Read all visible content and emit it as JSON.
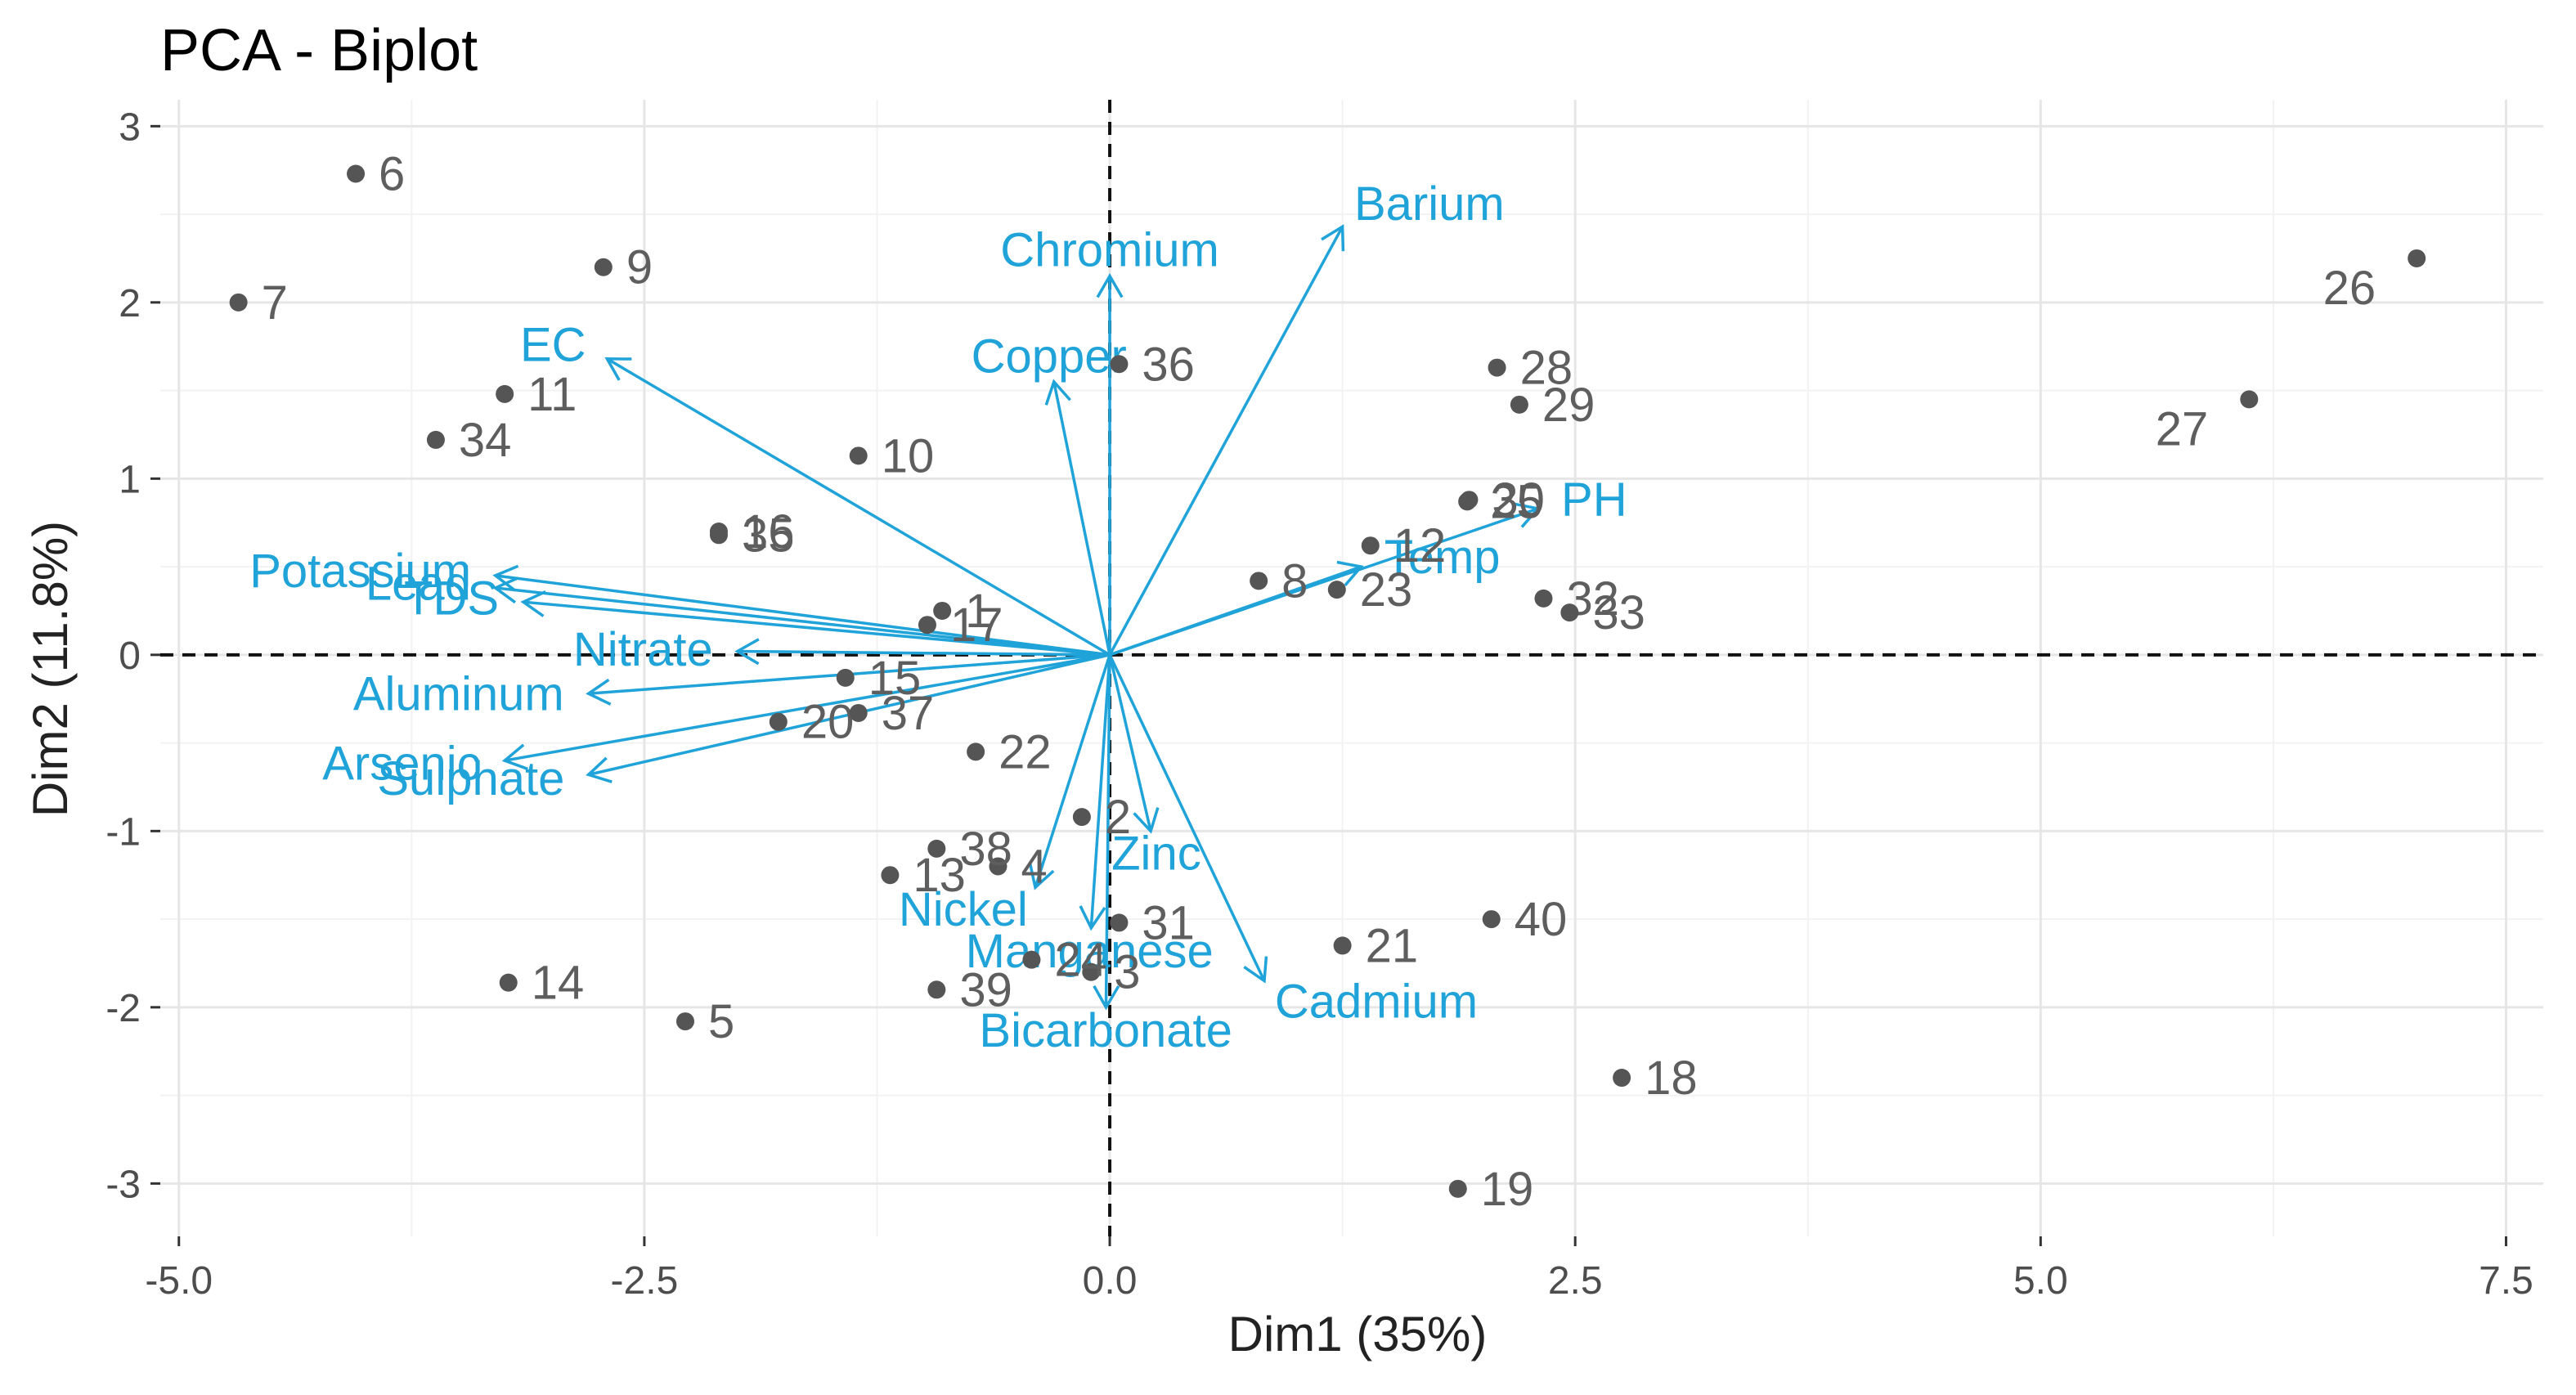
{
  "chart_data": {
    "type": "scatter",
    "title": "PCA - Biplot",
    "xlabel": "Dim1 (35%)",
    "ylabel": "Dim2 (11.8%)",
    "xlim": [
      -5.1,
      7.7
    ],
    "ylim": [
      -3.3,
      3.15
    ],
    "xticks": [
      -5.0,
      -2.5,
      0.0,
      2.5,
      5.0,
      7.5
    ],
    "xtick_labels": [
      "-5.0",
      "-2.5",
      "0.0",
      "2.5",
      "5.0",
      "7.5"
    ],
    "yticks": [
      -3,
      -2,
      -1,
      0,
      1,
      2,
      3
    ],
    "ytick_labels": [
      "-3",
      "-2",
      "-1",
      "0",
      "1",
      "2",
      "3"
    ],
    "grid": true,
    "point_color": "#555555",
    "arrow_color": "#1fa3d8",
    "points": [
      {
        "label": "1",
        "x": -0.9,
        "y": 0.25
      },
      {
        "label": "2",
        "x": -0.15,
        "y": -0.92
      },
      {
        "label": "3",
        "x": -0.1,
        "y": -1.8
      },
      {
        "label": "4",
        "x": -0.6,
        "y": -1.2
      },
      {
        "label": "5",
        "x": -2.28,
        "y": -2.08
      },
      {
        "label": "6",
        "x": -4.05,
        "y": 2.73
      },
      {
        "label": "7",
        "x": -4.68,
        "y": 2.0
      },
      {
        "label": "8",
        "x": 0.8,
        "y": 0.42
      },
      {
        "label": "9",
        "x": -2.72,
        "y": 2.2
      },
      {
        "label": "10",
        "x": -1.35,
        "y": 1.13
      },
      {
        "label": "11",
        "x": -3.25,
        "y": 1.48
      },
      {
        "label": "12",
        "x": 1.4,
        "y": 0.62
      },
      {
        "label": "13",
        "x": -1.18,
        "y": -1.25
      },
      {
        "label": "14",
        "x": -3.23,
        "y": -1.86
      },
      {
        "label": "15",
        "x": -1.42,
        "y": -0.13
      },
      {
        "label": "16",
        "x": -2.1,
        "y": 0.7
      },
      {
        "label": "17",
        "x": -0.98,
        "y": 0.17
      },
      {
        "label": "18",
        "x": 2.75,
        "y": -2.4
      },
      {
        "label": "19",
        "x": 1.87,
        "y": -3.03
      },
      {
        "label": "20",
        "x": -1.78,
        "y": -0.38
      },
      {
        "label": "21",
        "x": 1.25,
        "y": -1.65
      },
      {
        "label": "22",
        "x": -0.72,
        "y": -0.55
      },
      {
        "label": "23",
        "x": 1.22,
        "y": 0.37
      },
      {
        "label": "24",
        "x": -0.42,
        "y": -1.73
      },
      {
        "label": "25",
        "x": 1.92,
        "y": 0.87
      },
      {
        "label": "26",
        "x": 7.02,
        "y": 2.25
      },
      {
        "label": "27",
        "x": 6.12,
        "y": 1.45
      },
      {
        "label": "28",
        "x": 2.08,
        "y": 1.63
      },
      {
        "label": "29",
        "x": 2.2,
        "y": 1.42
      },
      {
        "label": "30",
        "x": 1.93,
        "y": 0.88
      },
      {
        "label": "31",
        "x": 0.05,
        "y": -1.52
      },
      {
        "label": "32",
        "x": 2.33,
        "y": 0.32
      },
      {
        "label": "33",
        "x": 2.47,
        "y": 0.24
      },
      {
        "label": "34",
        "x": -3.62,
        "y": 1.22
      },
      {
        "label": "35",
        "x": -2.1,
        "y": 0.68
      },
      {
        "label": "36",
        "x": 0.05,
        "y": 1.65
      },
      {
        "label": "37",
        "x": -1.35,
        "y": -0.33
      },
      {
        "label": "38",
        "x": -0.93,
        "y": -1.1
      },
      {
        "label": "39",
        "x": -0.93,
        "y": -1.9
      },
      {
        "label": "40",
        "x": 2.05,
        "y": -1.5
      }
    ],
    "variables": [
      {
        "name": "Barium",
        "x": 1.25,
        "y": 2.43
      },
      {
        "name": "Chromium",
        "x": 0.0,
        "y": 2.15
      },
      {
        "name": "EC",
        "x": -2.7,
        "y": 1.68
      },
      {
        "name": "Copper",
        "x": -0.3,
        "y": 1.55
      },
      {
        "name": "Potassium",
        "x": -3.3,
        "y": 0.45
      },
      {
        "name": "Lead",
        "x": -3.3,
        "y": 0.38
      },
      {
        "name": "TDS",
        "x": -3.15,
        "y": 0.3
      },
      {
        "name": "Nitrate",
        "x": -2.0,
        "y": 0.02
      },
      {
        "name": "Arsenic",
        "x": -3.25,
        "y": -0.6
      },
      {
        "name": "Sulphate",
        "x": -2.8,
        "y": -0.68
      },
      {
        "name": "Aluminum",
        "x": -2.8,
        "y": -0.22
      },
      {
        "name": "Nickel",
        "x": -0.4,
        "y": -1.32
      },
      {
        "name": "Manganese",
        "x": -0.1,
        "y": -1.55
      },
      {
        "name": "Bicarbonate",
        "x": -0.02,
        "y": -2.0
      },
      {
        "name": "Zinc",
        "x": 0.22,
        "y": -1.0
      },
      {
        "name": "Cadmium",
        "x": 0.83,
        "y": -1.85
      },
      {
        "name": "PH",
        "x": 2.3,
        "y": 0.83
      },
      {
        "name": "Temp",
        "x": 1.35,
        "y": 0.5
      }
    ]
  }
}
